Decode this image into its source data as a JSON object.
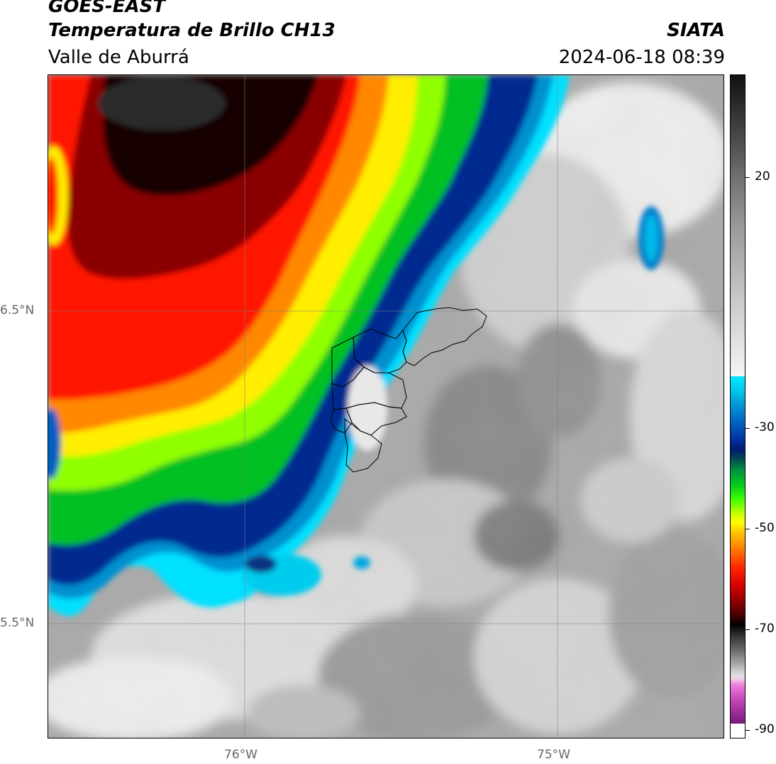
{
  "header": {
    "satellite": "GOES-EAST",
    "product": "Temperatura de Brillo CH13",
    "organization": "SIATA",
    "region": "Valle de Aburrá",
    "timestamp": "2024-06-18 08:39"
  },
  "map": {
    "latitude_labels": [
      "6.5°N",
      "5.5°N"
    ],
    "longitude_labels": [
      "76°W",
      "75°W"
    ]
  },
  "colorbar": {
    "labels": [
      "20",
      "-30",
      "-50",
      "-70",
      "-90"
    ],
    "units_hint": "brightness temperature"
  },
  "colors": {
    "cold_tops": "#000000",
    "red_band": "#ff2000",
    "yellow_band": "#ffff00",
    "green_band": "#00e000",
    "blue_band": "#0030a0",
    "cyan_band": "#00e8ff",
    "clear_sky_gray": "#b0b0b0"
  }
}
